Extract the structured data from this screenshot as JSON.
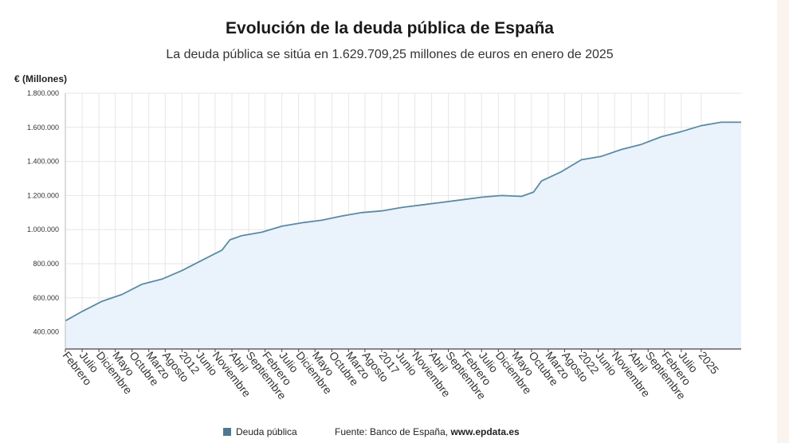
{
  "title": "Evolución de la deuda pública de España",
  "subtitle": "La deuda pública se sitúa en 1.629.709,25 millones de euros en enero de 2025",
  "unit_label": "€ (Millones)",
  "legend": {
    "label": "Deuda pública",
    "color": "#4f7890"
  },
  "source": {
    "prefix": "Fuente: Banco de España, ",
    "site": "www.epdata.es"
  },
  "colors": {
    "line": "#5b8aa3",
    "fill": "#eaf2fb",
    "grid": "#e6e6e6",
    "axis": "#444444"
  },
  "chart_data": {
    "type": "area",
    "title": "Evolución de la deuda pública de España",
    "ylabel": "€ (Millones)",
    "ylim": [
      300000,
      1800000
    ],
    "yticks": [
      400000,
      600000,
      800000,
      1000000,
      1200000,
      1400000,
      1600000,
      1800000
    ],
    "ytick_labels": [
      "400.000",
      "600.000",
      "800.000",
      "1.000.000",
      "1.200.000",
      "1.400.000",
      "1.600.000",
      "1.800.000"
    ],
    "xlim": [
      2008.08,
      2025.0
    ],
    "xticks": [
      {
        "label": "Febrero",
        "x": 2008.08
      },
      {
        "label": "Julio",
        "x": 2008.5
      },
      {
        "label": "Diciembre",
        "x": 2008.92
      },
      {
        "label": "Mayo",
        "x": 2009.33
      },
      {
        "label": "Octubre",
        "x": 2009.75
      },
      {
        "label": "Marzo",
        "x": 2010.17
      },
      {
        "label": "Agosto",
        "x": 2010.58
      },
      {
        "label": "2012",
        "x": 2011.0
      },
      {
        "label": "Junio",
        "x": 2011.42
      },
      {
        "label": "Noviembre",
        "x": 2011.83
      },
      {
        "label": "Abril",
        "x": 2012.25
      },
      {
        "label": "Septiembre",
        "x": 2012.67
      },
      {
        "label": "Febrero",
        "x": 2013.08
      },
      {
        "label": "Julio",
        "x": 2013.5
      },
      {
        "label": "Diciembre",
        "x": 2013.92
      },
      {
        "label": "Mayo",
        "x": 2014.33
      },
      {
        "label": "Octubre",
        "x": 2014.75
      },
      {
        "label": "Marzo",
        "x": 2015.17
      },
      {
        "label": "Agosto",
        "x": 2015.58
      },
      {
        "label": "2017",
        "x": 2016.0
      },
      {
        "label": "Junio",
        "x": 2016.42
      },
      {
        "label": "Noviembre",
        "x": 2016.83
      },
      {
        "label": "Abril",
        "x": 2017.25
      },
      {
        "label": "Septiembre",
        "x": 2017.67
      },
      {
        "label": "Febrero",
        "x": 2018.08
      },
      {
        "label": "Julio",
        "x": 2018.5
      },
      {
        "label": "Diciembre",
        "x": 2018.92
      },
      {
        "label": "Mayo",
        "x": 2019.33
      },
      {
        "label": "Octubre",
        "x": 2019.75
      },
      {
        "label": "Marzo",
        "x": 2020.17
      },
      {
        "label": "Agosto",
        "x": 2020.58
      },
      {
        "label": "2022",
        "x": 2021.0
      },
      {
        "label": "Junio",
        "x": 2021.42
      },
      {
        "label": "Noviembre",
        "x": 2021.83
      },
      {
        "label": "Abril",
        "x": 2022.25
      },
      {
        "label": "Septiembre",
        "x": 2022.67
      },
      {
        "label": "Febrero",
        "x": 2023.08
      },
      {
        "label": "Julio",
        "x": 2023.5
      },
      {
        "label": "2025",
        "x": 2024.0
      }
    ],
    "series": [
      {
        "name": "Deuda pública",
        "x": [
          2008.08,
          2008.5,
          2009.0,
          2009.5,
          2010.0,
          2010.5,
          2011.0,
          2011.5,
          2012.0,
          2012.2,
          2012.5,
          2013.0,
          2013.5,
          2014.0,
          2014.5,
          2015.0,
          2015.5,
          2016.0,
          2016.5,
          2017.0,
          2017.5,
          2018.0,
          2018.5,
          2019.0,
          2019.5,
          2019.8,
          2020.0,
          2020.5,
          2021.0,
          2021.5,
          2022.0,
          2022.5,
          2023.0,
          2023.5,
          2024.0,
          2024.5,
          2025.0
        ],
        "y": [
          465000,
          520000,
          580000,
          620000,
          680000,
          710000,
          760000,
          820000,
          880000,
          940000,
          965000,
          985000,
          1020000,
          1040000,
          1055000,
          1080000,
          1100000,
          1110000,
          1130000,
          1145000,
          1160000,
          1175000,
          1190000,
          1200000,
          1195000,
          1220000,
          1285000,
          1340000,
          1410000,
          1430000,
          1470000,
          1500000,
          1545000,
          1575000,
          1610000,
          1630000,
          1629709
        ]
      }
    ]
  }
}
